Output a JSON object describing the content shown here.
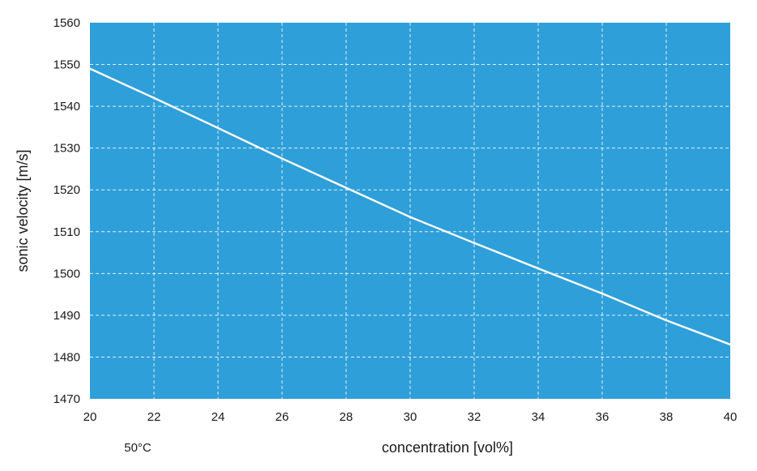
{
  "chart_data": {
    "type": "line",
    "title": "",
    "xlabel": "concentration [vol%]",
    "ylabel": "sonic velocity [m/s]",
    "annotation": "50°C",
    "xlim": [
      20,
      40
    ],
    "ylim": [
      1470,
      1560
    ],
    "x_ticks": [
      20,
      22,
      24,
      26,
      28,
      30,
      32,
      34,
      36,
      38,
      40
    ],
    "y_ticks": [
      1470,
      1480,
      1490,
      1500,
      1510,
      1520,
      1530,
      1540,
      1550,
      1560
    ],
    "grid": true,
    "legend": "none",
    "colors": {
      "plot_background": "#2e9fd9",
      "grid": "#ffffff",
      "line": "#ffffff"
    },
    "series": [
      {
        "x": [
          20,
          22,
          24,
          26,
          28,
          30,
          32,
          34,
          36,
          38,
          40
        ],
        "y": [
          1549,
          1542,
          1534.8,
          1527.5,
          1520.5,
          1513.5,
          1507.3,
          1501.2,
          1495.2,
          1488.8,
          1483
        ]
      }
    ]
  }
}
